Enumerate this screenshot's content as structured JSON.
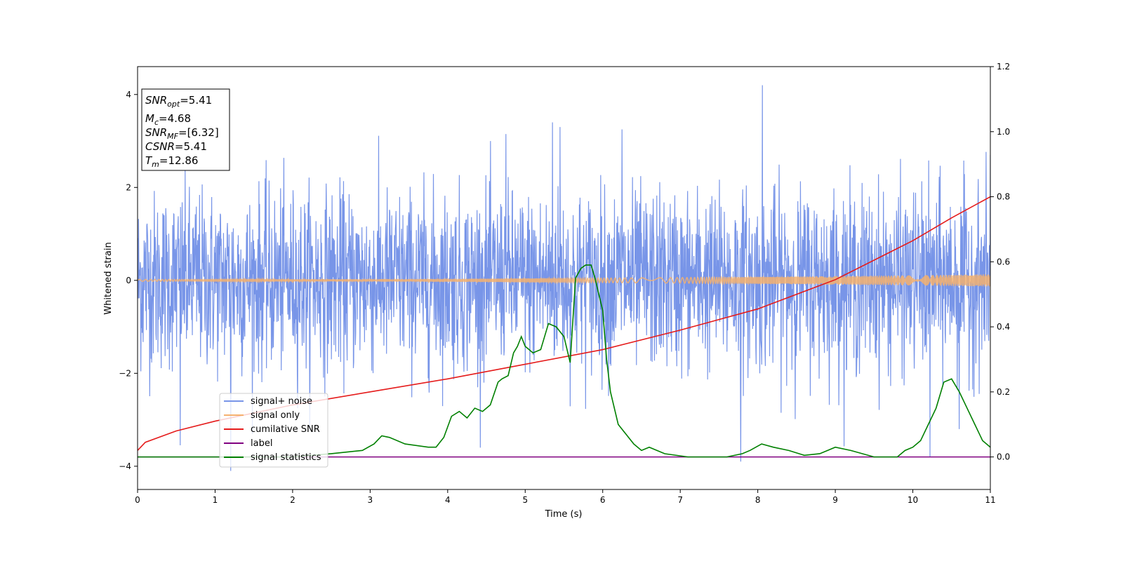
{
  "chart_data": {
    "type": "line",
    "xlabel": "Time (s)",
    "ylabel": "Whitened strain",
    "xlim": [
      0,
      11
    ],
    "ylim": [
      -4.5,
      4.6
    ],
    "y2lim": [
      -0.1,
      1.2
    ],
    "x_ticks": [
      0,
      1,
      2,
      3,
      4,
      5,
      6,
      7,
      8,
      9,
      10,
      11
    ],
    "y_ticks": [
      -4,
      -2,
      0,
      2,
      4
    ],
    "y2_ticks": [
      0.0,
      0.2,
      0.4,
      0.6,
      0.8,
      1.0,
      1.2
    ],
    "x_tick_labels": [
      "0",
      "1",
      "2",
      "3",
      "4",
      "5",
      "6",
      "7",
      "8",
      "9",
      "10",
      "11"
    ],
    "y_tick_labels": [
      "−4",
      "−2",
      "0",
      "2",
      "4"
    ],
    "y2_tick_labels": [
      "0.0",
      "0.2",
      "0.4",
      "0.6",
      "0.8",
      "1.0",
      "1.2"
    ],
    "grid": false,
    "legend_position": "lower-left",
    "info_box": {
      "snr_opt": {
        "base": "SNR",
        "sub": "opt",
        "value": "=5.41"
      },
      "mc": {
        "base": "M",
        "sub": "c",
        "value": "=4.68"
      },
      "snr_mf": {
        "base": "SNR",
        "sub": "MF",
        "value": "=[6.32]"
      },
      "csnr": {
        "base": "CSNR",
        "sub": "",
        "value": "=5.41"
      },
      "tm": {
        "base": "T",
        "sub": "m",
        "value": "=12.86"
      }
    },
    "series": [
      {
        "name": "signal+ noise",
        "axis": "left",
        "color": "#7895e8",
        "noise_sigma": 1.0,
        "spikes": [
          [
            0.55,
            -3.55
          ],
          [
            1.2,
            -4.1
          ],
          [
            4.75,
            3.15
          ],
          [
            5.35,
            3.4
          ],
          [
            5.45,
            3.3
          ],
          [
            6.25,
            3.25
          ],
          [
            7.78,
            -3.9
          ],
          [
            8.06,
            4.2
          ],
          [
            10.22,
            -3.8
          ],
          [
            10.6,
            -3.2
          ],
          [
            11.0,
            2.7
          ]
        ]
      },
      {
        "name": "signal only",
        "axis": "left",
        "color": "#f5b16f",
        "amplitude_start": 0.02,
        "amplitude_end": 0.13
      },
      {
        "name": "cumilative SNR",
        "axis": "right",
        "color": "#e51b1b",
        "x": [
          0.0,
          0.1,
          0.5,
          1.0,
          2.0,
          3.0,
          4.0,
          5.0,
          6.0,
          7.0,
          8.0,
          9.0,
          10.0,
          10.5,
          11.0
        ],
        "y": [
          0.02,
          0.045,
          0.08,
          0.11,
          0.16,
          0.2,
          0.24,
          0.285,
          0.33,
          0.39,
          0.455,
          0.545,
          0.665,
          0.735,
          0.8
        ]
      },
      {
        "name": "label",
        "axis": "right",
        "color": "#800080",
        "x": [
          0,
          11
        ],
        "y": [
          0.0,
          0.0
        ]
      },
      {
        "name": "signal statistics",
        "axis": "right",
        "color": "#008000",
        "x": [
          0.0,
          2.0,
          2.5,
          2.9,
          3.05,
          3.15,
          3.25,
          3.45,
          3.75,
          3.85,
          3.95,
          4.05,
          4.15,
          4.25,
          4.35,
          4.45,
          4.55,
          4.65,
          4.7,
          4.78,
          4.85,
          4.9,
          4.95,
          5.0,
          5.05,
          5.1,
          5.2,
          5.3,
          5.4,
          5.5,
          5.58,
          5.65,
          5.72,
          5.78,
          5.85,
          5.9,
          6.0,
          6.05,
          6.1,
          6.2,
          6.3,
          6.4,
          6.5,
          6.6,
          6.7,
          6.8,
          7.1,
          7.6,
          7.8,
          7.9,
          8.05,
          8.2,
          8.4,
          8.6,
          8.8,
          8.9,
          9.0,
          9.2,
          9.5,
          9.8,
          9.9,
          10.0,
          10.1,
          10.2,
          10.3,
          10.4,
          10.5,
          10.6,
          10.7,
          10.8,
          10.9,
          11.0
        ],
        "y": [
          0.0,
          0.0,
          0.01,
          0.02,
          0.04,
          0.065,
          0.06,
          0.04,
          0.03,
          0.03,
          0.06,
          0.125,
          0.14,
          0.12,
          0.15,
          0.14,
          0.16,
          0.23,
          0.24,
          0.25,
          0.32,
          0.34,
          0.37,
          0.34,
          0.33,
          0.32,
          0.33,
          0.41,
          0.4,
          0.37,
          0.29,
          0.55,
          0.58,
          0.59,
          0.59,
          0.55,
          0.45,
          0.3,
          0.2,
          0.1,
          0.07,
          0.04,
          0.02,
          0.03,
          0.02,
          0.01,
          0.0,
          0.0,
          0.01,
          0.02,
          0.04,
          0.03,
          0.02,
          0.005,
          0.01,
          0.02,
          0.03,
          0.02,
          0.0,
          0.0,
          0.02,
          0.03,
          0.05,
          0.1,
          0.15,
          0.23,
          0.24,
          0.2,
          0.15,
          0.1,
          0.05,
          0.03
        ]
      }
    ]
  }
}
